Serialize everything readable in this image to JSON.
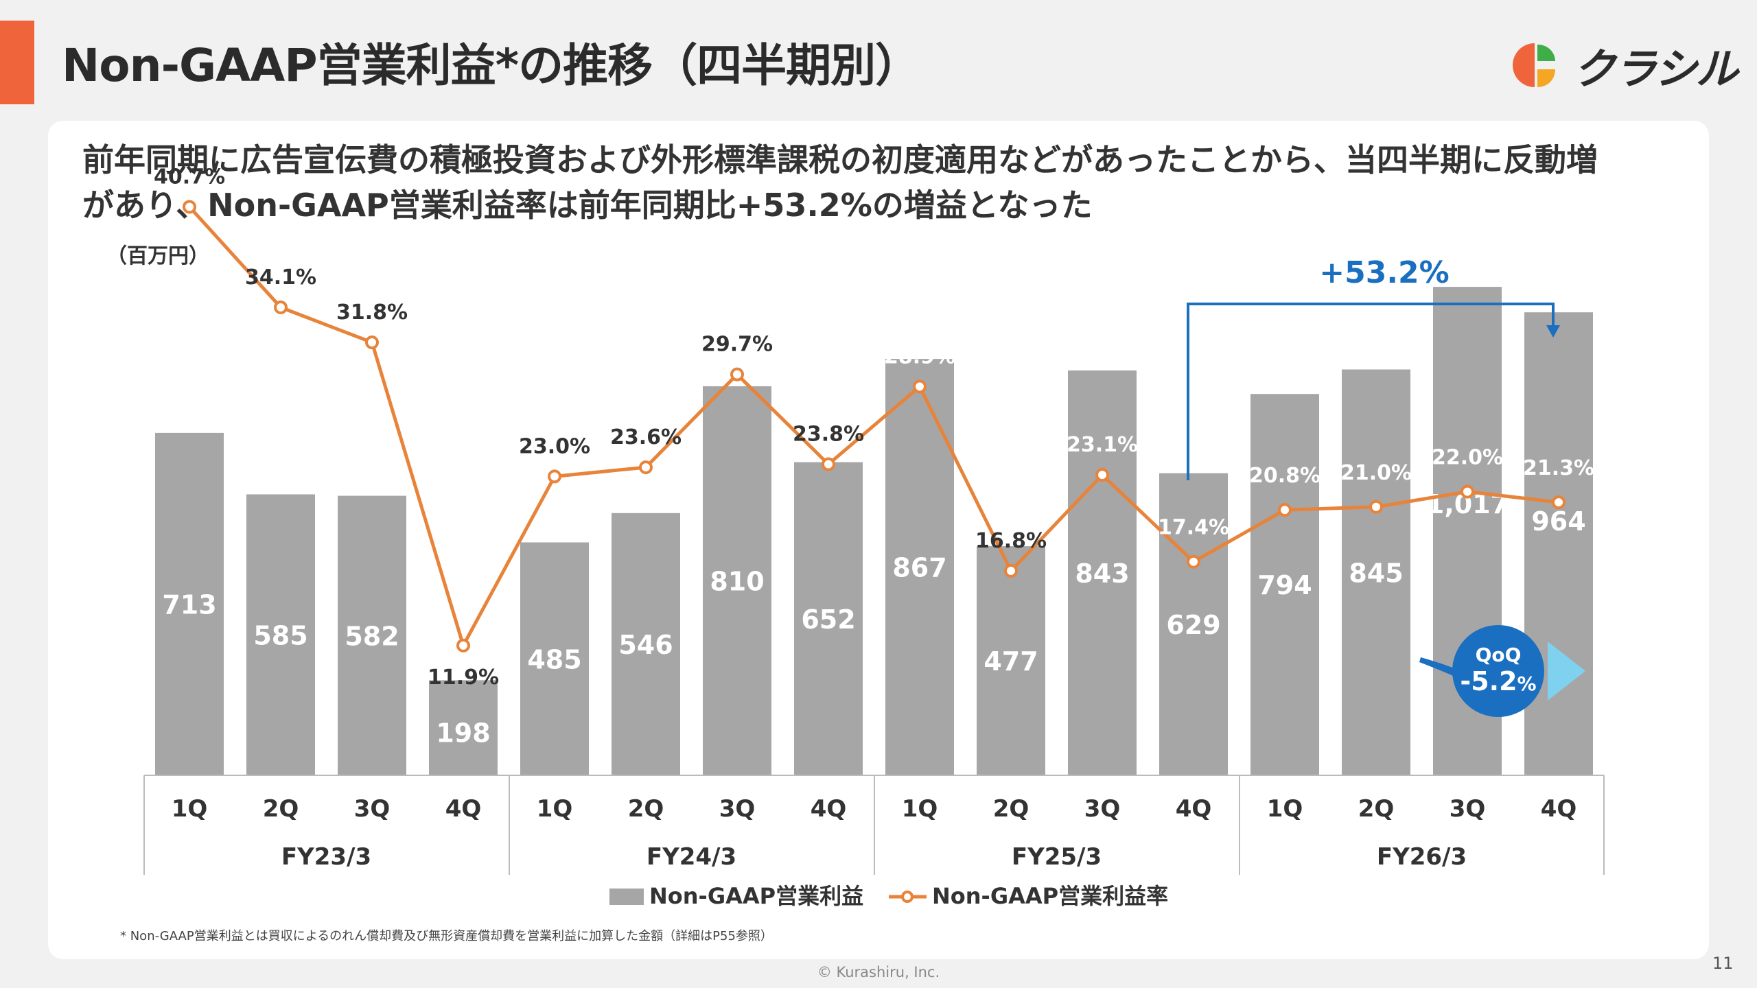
{
  "page": {
    "title": "Non-GAAP営業利益*の推移（四半期別）",
    "headline_line1": "前年同期に広告宣伝費の積極投資および外形標準課税の初度適用などがあったことから、当四半期に反動増",
    "headline_line2": "があり、Non-GAAP営業利益率は前年同期比+53.2%の増益となった",
    "footnote": "* Non-GAAP営業利益とは買収によるのれん償却費及び無形資産償却費を営業利益に加算した金額（詳細はP55参照）",
    "copyright": "© Kurashiru, Inc.",
    "page_number": "11"
  },
  "logo": {
    "text": "クラシル",
    "icon": "kurashiru-leaf-icon",
    "colors": [
      "#f0643c",
      "#f5a623",
      "#3fae49"
    ]
  },
  "chart_data": {
    "type": "bar",
    "unit_label": "（百万円）",
    "categories": [
      "1Q",
      "2Q",
      "3Q",
      "4Q",
      "1Q",
      "2Q",
      "3Q",
      "4Q",
      "1Q",
      "2Q",
      "3Q",
      "4Q",
      "1Q",
      "2Q",
      "3Q",
      "4Q"
    ],
    "fiscal_years": [
      "FY23/3",
      "FY24/3",
      "FY25/3",
      "FY26/3"
    ],
    "series": [
      {
        "name": "Non-GAAP営業利益",
        "kind": "bar",
        "color": "#a6a6a6",
        "values": [
          713,
          585,
          582,
          198,
          485,
          546,
          810,
          652,
          867,
          477,
          843,
          629,
          794,
          845,
          1017,
          964
        ],
        "labels": [
          "713",
          "585",
          "582",
          "198",
          "485",
          "546",
          "810",
          "652",
          "867",
          "477",
          "843",
          "629",
          "794",
          "845",
          "1,017",
          "964"
        ]
      },
      {
        "name": "Non-GAAP営業利益率",
        "kind": "line",
        "color": "#e8833a",
        "values": [
          40.7,
          34.1,
          31.8,
          11.9,
          23.0,
          23.6,
          29.7,
          23.8,
          28.9,
          16.8,
          23.1,
          17.4,
          20.8,
          21.0,
          22.0,
          21.3
        ],
        "labels": [
          "40.7%",
          "34.1%",
          "31.8%",
          "11.9%",
          "23.0%",
          "23.6%",
          "29.7%",
          "23.8%",
          "28.9%",
          "16.8%",
          "23.1%",
          "17.4%",
          "20.8%",
          "21.0%",
          "22.0%",
          "21.3%"
        ]
      }
    ],
    "annotations": {
      "yoy": {
        "text": "+53.2%",
        "from_index": 11,
        "to_index": 15,
        "color": "#1a6fc0"
      },
      "qoq": {
        "title": "QoQ",
        "value": "-5.2",
        "unit": "%",
        "color": "#1a6fc0"
      }
    },
    "legend_position": "bottom",
    "grid": false
  }
}
